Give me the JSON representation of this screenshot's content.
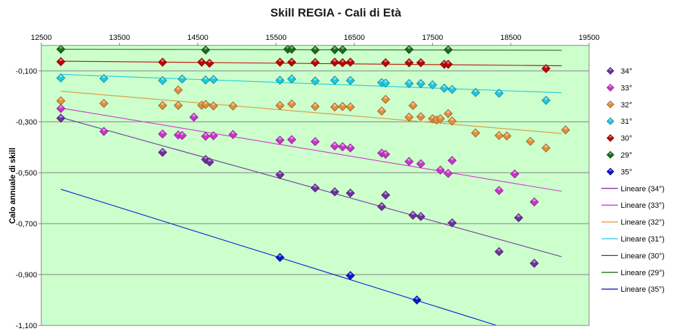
{
  "chart_data": {
    "type": "scatter",
    "title": "Skill REGIA - Cali di Età",
    "xlabel": "",
    "ylabel": "Calo annuale di skill",
    "xlim": [
      12500,
      19500
    ],
    "ylim": [
      -1.1,
      0
    ],
    "x_ticks": [
      12500,
      13500,
      14500,
      15500,
      16500,
      17500,
      18500,
      19500
    ],
    "x_tick_labels": [
      "12500",
      "13500",
      "14500",
      "15500",
      "16500",
      "17500",
      "18500",
      "19500"
    ],
    "y_ticks": [
      -0.1,
      -0.3,
      -0.5,
      -0.7,
      -0.9,
      -1.1
    ],
    "y_tick_labels": [
      "-0,100",
      "-0,300",
      "-0,500",
      "-0,700",
      "-0,900",
      "-1,100"
    ],
    "x_axis_position": "top",
    "grid": "horizontal",
    "plot_background": "#ccffcc",
    "legend_position": "right",
    "series": [
      {
        "name": "34°",
        "color": "#7030a0",
        "points": [
          [
            12750,
            -0.286
          ],
          [
            14050,
            -0.42
          ],
          [
            14600,
            -0.448
          ],
          [
            14650,
            -0.458
          ],
          [
            15550,
            -0.508
          ],
          [
            16000,
            -0.56
          ],
          [
            16250,
            -0.575
          ],
          [
            16450,
            -0.58
          ],
          [
            16850,
            -0.633
          ],
          [
            16900,
            -0.588
          ],
          [
            17250,
            -0.667
          ],
          [
            17350,
            -0.672
          ],
          [
            17750,
            -0.697
          ],
          [
            18350,
            -0.81
          ],
          [
            18600,
            -0.677
          ],
          [
            18800,
            -0.856
          ]
        ],
        "trend": {
          "name": "Lineare (34°)",
          "x": [
            12750,
            19150
          ],
          "y": [
            -0.283,
            -0.83
          ]
        }
      },
      {
        "name": "33°",
        "color": "#cc33cc",
        "points": [
          [
            12750,
            -0.248
          ],
          [
            13300,
            -0.338
          ],
          [
            14050,
            -0.348
          ],
          [
            14250,
            -0.352
          ],
          [
            14300,
            -0.354
          ],
          [
            14450,
            -0.282
          ],
          [
            14600,
            -0.357
          ],
          [
            14700,
            -0.355
          ],
          [
            14950,
            -0.35
          ],
          [
            15550,
            -0.372
          ],
          [
            15700,
            -0.37
          ],
          [
            16000,
            -0.378
          ],
          [
            16250,
            -0.395
          ],
          [
            16350,
            -0.398
          ],
          [
            16450,
            -0.403
          ],
          [
            16850,
            -0.423
          ],
          [
            16900,
            -0.428
          ],
          [
            17200,
            -0.456
          ],
          [
            17350,
            -0.465
          ],
          [
            17600,
            -0.49
          ],
          [
            17700,
            -0.503
          ],
          [
            17750,
            -0.452
          ],
          [
            18350,
            -0.57
          ],
          [
            18550,
            -0.505
          ],
          [
            18800,
            -0.615
          ]
        ],
        "trend": {
          "name": "Lineare (33°)",
          "x": [
            12750,
            19150
          ],
          "y": [
            -0.246,
            -0.573
          ]
        }
      },
      {
        "name": "32°",
        "color": "#e0903a",
        "points": [
          [
            12750,
            -0.218
          ],
          [
            13300,
            -0.228
          ],
          [
            14050,
            -0.236
          ],
          [
            14250,
            -0.236
          ],
          [
            14250,
            -0.175
          ],
          [
            14550,
            -0.235
          ],
          [
            14600,
            -0.232
          ],
          [
            14700,
            -0.238
          ],
          [
            14950,
            -0.238
          ],
          [
            15550,
            -0.236
          ],
          [
            15700,
            -0.23
          ],
          [
            16000,
            -0.24
          ],
          [
            16250,
            -0.242
          ],
          [
            16350,
            -0.24
          ],
          [
            16450,
            -0.242
          ],
          [
            16850,
            -0.258
          ],
          [
            16900,
            -0.212
          ],
          [
            17200,
            -0.282
          ],
          [
            17250,
            -0.236
          ],
          [
            17350,
            -0.28
          ],
          [
            17500,
            -0.288
          ],
          [
            17550,
            -0.293
          ],
          [
            17600,
            -0.288
          ],
          [
            17700,
            -0.268
          ],
          [
            17750,
            -0.297
          ],
          [
            18050,
            -0.344
          ],
          [
            18350,
            -0.354
          ],
          [
            18450,
            -0.356
          ],
          [
            18750,
            -0.377
          ],
          [
            18950,
            -0.403
          ],
          [
            19200,
            -0.332
          ]
        ],
        "trend": {
          "name": "Lineare (32°)",
          "x": [
            12750,
            19150
          ],
          "y": [
            -0.18,
            -0.346
          ]
        }
      },
      {
        "name": "31°",
        "color": "#1ec8e0",
        "points": [
          [
            12750,
            -0.128
          ],
          [
            13300,
            -0.13
          ],
          [
            14050,
            -0.138
          ],
          [
            14300,
            -0.132
          ],
          [
            14600,
            -0.136
          ],
          [
            14700,
            -0.134
          ],
          [
            15550,
            -0.137
          ],
          [
            15700,
            -0.132
          ],
          [
            16000,
            -0.14
          ],
          [
            16250,
            -0.137
          ],
          [
            16450,
            -0.138
          ],
          [
            16850,
            -0.146
          ],
          [
            16900,
            -0.148
          ],
          [
            17200,
            -0.15
          ],
          [
            17350,
            -0.15
          ],
          [
            17500,
            -0.155
          ],
          [
            17650,
            -0.168
          ],
          [
            17750,
            -0.173
          ],
          [
            18050,
            -0.185
          ],
          [
            18350,
            -0.188
          ],
          [
            18950,
            -0.216
          ]
        ],
        "trend": {
          "name": "Lineare (31°)",
          "x": [
            12750,
            19150
          ],
          "y": [
            -0.114,
            -0.186
          ]
        }
      },
      {
        "name": "30°",
        "color": "#c00000",
        "points": [
          [
            12750,
            -0.064
          ],
          [
            14050,
            -0.066
          ],
          [
            14550,
            -0.066
          ],
          [
            14650,
            -0.07
          ],
          [
            15550,
            -0.066
          ],
          [
            15700,
            -0.066
          ],
          [
            16000,
            -0.067
          ],
          [
            16250,
            -0.066
          ],
          [
            16350,
            -0.068
          ],
          [
            16450,
            -0.066
          ],
          [
            16900,
            -0.068
          ],
          [
            17200,
            -0.068
          ],
          [
            17350,
            -0.068
          ],
          [
            17650,
            -0.074
          ],
          [
            17700,
            -0.074
          ],
          [
            18950,
            -0.091
          ]
        ],
        "trend": {
          "name": "Lineare (30°)",
          "x": [
            12750,
            19150
          ],
          "y": [
            -0.062,
            -0.08
          ]
        }
      },
      {
        "name": "29°",
        "color": "#1b6b1b",
        "points": [
          [
            12750,
            -0.015
          ],
          [
            14600,
            -0.018
          ],
          [
            15650,
            -0.015
          ],
          [
            15700,
            -0.015
          ],
          [
            16000,
            -0.018
          ],
          [
            16250,
            -0.017
          ],
          [
            16350,
            -0.017
          ],
          [
            17200,
            -0.016
          ],
          [
            17700,
            -0.017
          ]
        ],
        "trend": {
          "name": "Lineare (29°)",
          "x": [
            12750,
            19150
          ],
          "y": [
            -0.015,
            -0.019
          ]
        }
      },
      {
        "name": "35°",
        "color": "#0a14d0",
        "points": [
          [
            15550,
            -0.833
          ],
          [
            16450,
            -0.904
          ],
          [
            17300,
            -1.0
          ]
        ],
        "trend": {
          "name": "Lineare (35°)",
          "x": [
            12750,
            18320
          ],
          "y": [
            -0.565,
            -1.1
          ]
        }
      }
    ],
    "legend_order": [
      "34°",
      "33°",
      "32°",
      "31°",
      "30°",
      "29°",
      "35°",
      "Lineare (34°)",
      "Lineare (33°)",
      "Lineare (32°)",
      "Lineare (31°)",
      "Lineare (30°)",
      "Lineare (29°)",
      "Lineare (35°)"
    ]
  }
}
